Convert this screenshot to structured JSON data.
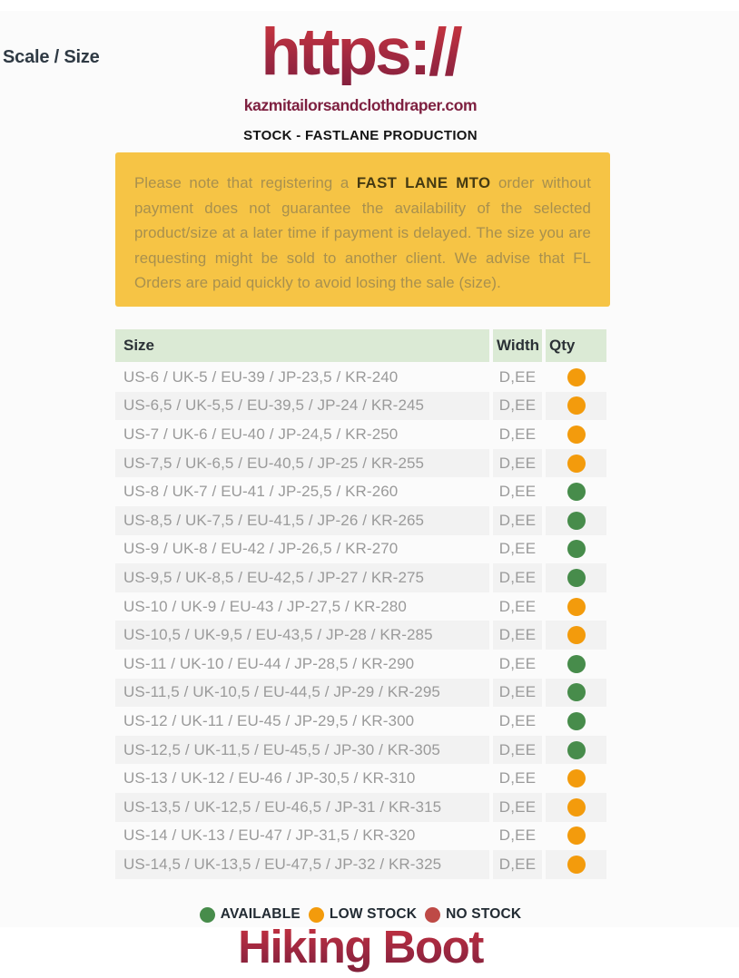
{
  "header": {
    "scale_size_label": "Scale / Size",
    "logo_text": "https://",
    "logo_domain": "kazmitailorsandclothdraper.com",
    "subtitle": "STOCK - FASTLANE PRODUCTION"
  },
  "notice": {
    "text_before": "Please note that registering a ",
    "bold_text": "FAST LANE MTO",
    "text_after": " order without payment does not guarantee the availability of the selected product/size at a later time if payment is delayed. The size you are requesting might be sold to another client. We advise that FL Orders are paid quickly to avoid losing the sale (size).",
    "background_color": "#f6c445"
  },
  "table": {
    "headers": [
      "Size",
      "Width",
      "Qty"
    ],
    "rows": [
      {
        "size": "US-6 / UK-5 / EU-39 / JP-23,5 / KR-240",
        "width": "D,EE",
        "stock": "low"
      },
      {
        "size": "US-6,5 / UK-5,5 / EU-39,5 / JP-24 / KR-245",
        "width": "D,EE",
        "stock": "low"
      },
      {
        "size": "US-7 / UK-6 / EU-40 / JP-24,5 / KR-250",
        "width": "D,EE",
        "stock": "low"
      },
      {
        "size": "US-7,5 / UK-6,5 / EU-40,5 / JP-25 / KR-255",
        "width": "D,EE",
        "stock": "low"
      },
      {
        "size": "US-8 / UK-7 / EU-41 / JP-25,5 / KR-260",
        "width": "D,EE",
        "stock": "available"
      },
      {
        "size": "US-8,5 / UK-7,5 / EU-41,5 / JP-26 / KR-265",
        "width": "D,EE",
        "stock": "available"
      },
      {
        "size": "US-9 / UK-8 / EU-42 / JP-26,5 / KR-270",
        "width": "D,EE",
        "stock": "available"
      },
      {
        "size": "US-9,5 / UK-8,5 / EU-42,5 / JP-27 / KR-275",
        "width": "D,EE",
        "stock": "available"
      },
      {
        "size": "US-10 / UK-9 / EU-43 / JP-27,5 / KR-280",
        "width": "D,EE",
        "stock": "low"
      },
      {
        "size": "US-10,5 / UK-9,5 / EU-43,5 / JP-28 / KR-285",
        "width": "D,EE",
        "stock": "low"
      },
      {
        "size": "US-11 / UK-10 / EU-44 / JP-28,5 / KR-290",
        "width": "D,EE",
        "stock": "available"
      },
      {
        "size": "US-11,5 / UK-10,5 / EU-44,5 / JP-29 / KR-295",
        "width": "D,EE",
        "stock": "available"
      },
      {
        "size": "US-12 / UK-11 / EU-45 / JP-29,5 / KR-300",
        "width": "D,EE",
        "stock": "available"
      },
      {
        "size": "US-12,5 / UK-11,5 / EU-45,5 / JP-30 / KR-305",
        "width": "D,EE",
        "stock": "available"
      },
      {
        "size": "US-13 / UK-12 / EU-46 / JP-30,5 / KR-310",
        "width": "D,EE",
        "stock": "low"
      },
      {
        "size": "US-13,5 / UK-12,5 / EU-46,5 / JP-31 / KR-315",
        "width": "D,EE",
        "stock": "low"
      },
      {
        "size": "US-14 / UK-13 / EU-47 / JP-31,5 / KR-320",
        "width": "D,EE",
        "stock": "low"
      },
      {
        "size": "US-14,5 / UK-13,5 / EU-47,5 / JP-32 / KR-325",
        "width": "D,EE",
        "stock": "low"
      }
    ],
    "header_background": "#dbead5"
  },
  "stock_colors": {
    "available": "#478c4b",
    "low": "#f39b0c",
    "none": "#be4a46"
  },
  "legend": {
    "items": [
      {
        "label": "AVAILABLE",
        "stock": "available"
      },
      {
        "label": "LOW STOCK",
        "stock": "low"
      },
      {
        "label": "NO STOCK",
        "stock": "none"
      }
    ]
  },
  "product_title": "Hiking Boot",
  "brand_colors": {
    "logo_red_top": "#c5343f",
    "logo_red_bottom": "#85203e",
    "domain_maroon": "#7e2040"
  }
}
